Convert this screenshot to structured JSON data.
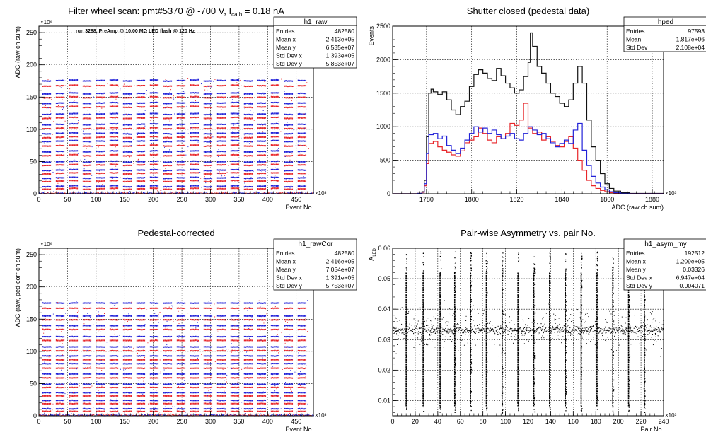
{
  "chart_data": [
    {
      "id": "tl",
      "type": "scatter",
      "title": "Filter wheel scan: pmt#5370 @  -700 V, I",
      "title_sub": "cath",
      "title_tail": " = 0.18 nA",
      "xlabel": "Event No.",
      "ylabel": "ADC (raw ch sum)",
      "x_exponent": "×10³",
      "y_exponent": "×10⁶",
      "xlim": [
        0,
        480
      ],
      "ylim": [
        0,
        260
      ],
      "x_ticks": [
        0,
        50,
        100,
        150,
        200,
        250,
        300,
        350,
        400,
        450
      ],
      "y_ticks": [
        0,
        50,
        100,
        150,
        200,
        250
      ],
      "grid": true,
      "annotation": "run 3288, PreAmp @ 10.00 MΩ LED flash @  120 Hz",
      "stats": {
        "name": "h1_raw",
        "rows": [
          [
            "Entries",
            "482580"
          ],
          [
            "Mean x",
            "2.413e+05"
          ],
          [
            "Mean y",
            "6.535e+07"
          ],
          [
            "Std Dev x",
            "1.393e+05"
          ],
          [
            "Std Dev y",
            "5.853e+07"
          ]
        ]
      },
      "levels": {
        "red": [
          8,
          20,
          32,
          45,
          60,
          75,
          88,
          102,
          118,
          135,
          150,
          168
        ],
        "blue": [
          12,
          25,
          37,
          50,
          66,
          82,
          94,
          108,
          124,
          141,
          156,
          176
        ]
      },
      "colors": {
        "red": "#e8262a",
        "blue": "#2222d8"
      }
    },
    {
      "id": "tr",
      "type": "line",
      "title": "Shutter closed (pedestal data)",
      "xlabel": "ADC (raw ch sum)",
      "ylabel": "Events",
      "x_exponent": "×10³",
      "xlim": [
        1765,
        1885
      ],
      "ylim": [
        0,
        2500
      ],
      "x_ticks": [
        1780,
        1800,
        1820,
        1840,
        1860,
        1880
      ],
      "y_ticks": [
        0,
        500,
        1000,
        1500,
        2000,
        2500
      ],
      "grid": true,
      "stats": {
        "name": "hped",
        "rows": [
          [
            "Entries",
            "97593"
          ],
          [
            "Mean",
            "1.817e+06"
          ],
          [
            "Std Dev",
            "2.108e+04"
          ]
        ]
      },
      "series": [
        {
          "color": "#111111",
          "x": [
            1765,
            1776,
            1778,
            1779,
            1780,
            1781,
            1782,
            1783,
            1785,
            1787,
            1789,
            1791,
            1793,
            1795,
            1797,
            1799,
            1801,
            1803,
            1805,
            1807,
            1809,
            1811,
            1813,
            1815,
            1817,
            1819,
            1821,
            1823,
            1825,
            1826,
            1827,
            1829,
            1831,
            1833,
            1835,
            1837,
            1839,
            1841,
            1843,
            1845,
            1847,
            1849,
            1851,
            1853,
            1855,
            1857,
            1859,
            1861,
            1863,
            1866,
            1870,
            1885
          ],
          "y": [
            0,
            5,
            30,
            200,
            850,
            1500,
            1560,
            1520,
            1480,
            1520,
            1400,
            1250,
            1180,
            1300,
            1380,
            1600,
            1780,
            1850,
            1800,
            1720,
            1690,
            1870,
            1760,
            1650,
            1580,
            1500,
            1550,
            1750,
            1960,
            2400,
            2200,
            1900,
            1800,
            1650,
            1500,
            1450,
            1350,
            1300,
            1400,
            1650,
            1900,
            1650,
            1100,
            700,
            500,
            300,
            150,
            80,
            40,
            15,
            5,
            0
          ]
        },
        {
          "color": "#e8262a",
          "x": [
            1765,
            1776,
            1778,
            1779,
            1780,
            1781,
            1783,
            1785,
            1787,
            1789,
            1791,
            1793,
            1795,
            1797,
            1799,
            1801,
            1803,
            1805,
            1807,
            1809,
            1811,
            1813,
            1815,
            1817,
            1819,
            1821,
            1823,
            1825,
            1827,
            1829,
            1831,
            1833,
            1835,
            1837,
            1839,
            1841,
            1843,
            1845,
            1847,
            1849,
            1851,
            1853,
            1855,
            1857,
            1859,
            1861,
            1863,
            1866,
            1870,
            1885
          ],
          "y": [
            0,
            5,
            20,
            120,
            450,
            750,
            780,
            700,
            650,
            620,
            580,
            560,
            640,
            760,
            800,
            850,
            980,
            900,
            800,
            760,
            850,
            820,
            900,
            1050,
            1020,
            1100,
            1350,
            980,
            900,
            920,
            800,
            850,
            780,
            720,
            700,
            780,
            850,
            680,
            500,
            350,
            200,
            120,
            80,
            50,
            30,
            15,
            8,
            4,
            2,
            0
          ]
        },
        {
          "color": "#2222d8",
          "x": [
            1765,
            1776,
            1778,
            1779,
            1780,
            1781,
            1783,
            1785,
            1787,
            1789,
            1791,
            1793,
            1795,
            1797,
            1799,
            1801,
            1803,
            1805,
            1807,
            1809,
            1811,
            1813,
            1815,
            1817,
            1819,
            1821,
            1823,
            1825,
            1827,
            1829,
            1831,
            1833,
            1835,
            1837,
            1839,
            1841,
            1843,
            1845,
            1847,
            1849,
            1851,
            1853,
            1855,
            1857,
            1859,
            1861,
            1863,
            1866,
            1870,
            1885
          ],
          "y": [
            0,
            5,
            25,
            150,
            600,
            880,
            900,
            820,
            860,
            720,
            650,
            600,
            680,
            800,
            900,
            1000,
            920,
            980,
            900,
            950,
            880,
            820,
            860,
            900,
            820,
            800,
            900,
            1000,
            950,
            880,
            900,
            820,
            760,
            700,
            750,
            800,
            750,
            950,
            1050,
            650,
            420,
            260,
            160,
            100,
            60,
            30,
            15,
            6,
            2,
            0
          ]
        }
      ]
    },
    {
      "id": "bl",
      "type": "scatter",
      "title": "Pedestal-corrected",
      "xlabel": "Event No.",
      "ylabel": "ADC (raw, ped-corr ch sum)",
      "x_exponent": "×10³",
      "y_exponent": "×10⁶",
      "xlim": [
        0,
        480
      ],
      "ylim": [
        0,
        260
      ],
      "x_ticks": [
        0,
        50,
        100,
        150,
        200,
        250,
        300,
        350,
        400,
        450
      ],
      "y_ticks": [
        0,
        50,
        100,
        150,
        200,
        250
      ],
      "grid": true,
      "stats": {
        "name": "h1_rawCor",
        "rows": [
          [
            "Entries",
            "482580"
          ],
          [
            "Mean x",
            "2.416e+05"
          ],
          [
            "Mean y",
            "7.054e+07"
          ],
          [
            "Std Dev x",
            "1.391e+05"
          ],
          [
            "Std Dev y",
            "5.753e+07"
          ]
        ]
      },
      "levels": {
        "red": [
          8,
          20,
          32,
          45,
          60,
          75,
          88,
          102,
          118,
          135,
          150,
          168
        ],
        "blue": [
          12,
          25,
          37,
          50,
          66,
          82,
          94,
          108,
          124,
          141,
          156,
          176
        ]
      },
      "colors": {
        "red": "#e8262a",
        "blue": "#2222d8"
      }
    },
    {
      "id": "br",
      "type": "scatter",
      "title": "Pair-wise Asymmetry vs. pair No.",
      "xlabel": "Pair No.",
      "ylabel": "A",
      "ylabel_sub": "LED",
      "x_exponent": "×10³",
      "xlim": [
        0,
        240
      ],
      "ylim": [
        0.005,
        0.06
      ],
      "x_ticks": [
        0,
        20,
        40,
        60,
        80,
        100,
        120,
        140,
        160,
        180,
        200,
        220,
        240
      ],
      "y_ticks": [
        0.01,
        0.02,
        0.03,
        0.04,
        0.05,
        0.06
      ],
      "grid": true,
      "band_center": 0.0333,
      "spike_positions": [
        12,
        27,
        42,
        55,
        69,
        83,
        97,
        111,
        125,
        139,
        153,
        167,
        181,
        195,
        209,
        223
      ],
      "stats": {
        "name": "h1_asym_my",
        "rows": [
          [
            "Entries",
            "192512"
          ],
          [
            "Mean x",
            "1.209e+05"
          ],
          [
            "Mean y",
            "0.03326"
          ],
          [
            "Std Dev x",
            "6.947e+04"
          ],
          [
            "Std Dev y",
            "0.004071"
          ]
        ]
      }
    }
  ]
}
